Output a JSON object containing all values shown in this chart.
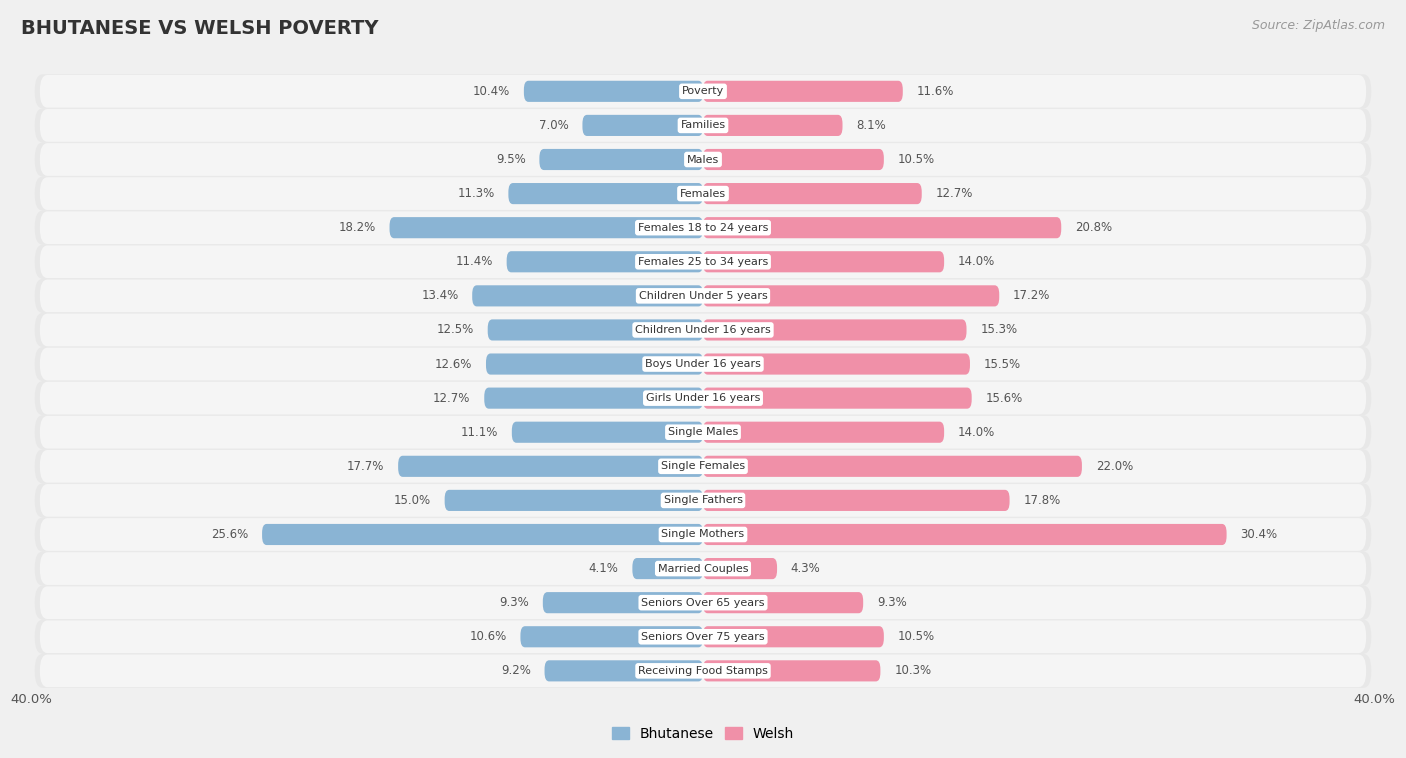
{
  "title": "BHUTANESE VS WELSH POVERTY",
  "source": "Source: ZipAtlas.com",
  "categories": [
    "Poverty",
    "Families",
    "Males",
    "Females",
    "Females 18 to 24 years",
    "Females 25 to 34 years",
    "Children Under 5 years",
    "Children Under 16 years",
    "Boys Under 16 years",
    "Girls Under 16 years",
    "Single Males",
    "Single Females",
    "Single Fathers",
    "Single Mothers",
    "Married Couples",
    "Seniors Over 65 years",
    "Seniors Over 75 years",
    "Receiving Food Stamps"
  ],
  "bhutanese": [
    10.4,
    7.0,
    9.5,
    11.3,
    18.2,
    11.4,
    13.4,
    12.5,
    12.6,
    12.7,
    11.1,
    17.7,
    15.0,
    25.6,
    4.1,
    9.3,
    10.6,
    9.2
  ],
  "welsh": [
    11.6,
    8.1,
    10.5,
    12.7,
    20.8,
    14.0,
    17.2,
    15.3,
    15.5,
    15.6,
    14.0,
    22.0,
    17.8,
    30.4,
    4.3,
    9.3,
    10.5,
    10.3
  ],
  "bhutanese_color": "#8ab4d4",
  "welsh_color": "#f090a8",
  "row_bg_color": "#e8e8e8",
  "bar_bg_color": "#f5f5f5",
  "outer_bg_color": "#f0f0f0",
  "label_bg_color": "#ffffff",
  "axis_max": 40.0,
  "legend_labels": [
    "Bhutanese",
    "Welsh"
  ],
  "title_fontsize": 14,
  "source_fontsize": 9,
  "label_fontsize": 8,
  "value_fontsize": 8.5
}
